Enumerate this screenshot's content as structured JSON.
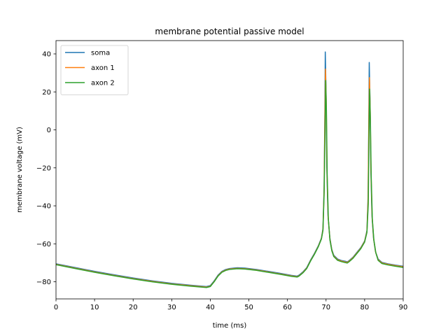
{
  "chart_data": {
    "type": "line",
    "title": "membrane potential passive model",
    "xlabel": "time (ms)",
    "ylabel": "membrane voltage (mV)",
    "xlim": [
      0,
      90
    ],
    "ylim": [
      -89,
      47
    ],
    "xticks": [
      0,
      10,
      20,
      30,
      40,
      50,
      60,
      70,
      80,
      90
    ],
    "yticks": [
      -80,
      -60,
      -40,
      -20,
      0,
      20,
      40
    ],
    "grid": false,
    "legend_position": "top-left",
    "series": [
      {
        "name": "soma",
        "color": "#1f77b4",
        "points": [
          [
            0,
            -70.5
          ],
          [
            5,
            -72.5
          ],
          [
            10,
            -74.5
          ],
          [
            15,
            -76.3
          ],
          [
            20,
            -78
          ],
          [
            25,
            -79.5
          ],
          [
            30,
            -80.8
          ],
          [
            35,
            -81.8
          ],
          [
            39,
            -82.5
          ],
          [
            40,
            -82
          ],
          [
            41,
            -79.5
          ],
          [
            42,
            -76.5
          ],
          [
            43,
            -74.5
          ],
          [
            44,
            -73.5
          ],
          [
            45,
            -73
          ],
          [
            47,
            -72.6
          ],
          [
            49,
            -72.8
          ],
          [
            52,
            -73.5
          ],
          [
            55,
            -74.5
          ],
          [
            58,
            -75.5
          ],
          [
            61,
            -76.6
          ],
          [
            62.5,
            -77
          ],
          [
            63,
            -76.5
          ],
          [
            64,
            -74.8
          ],
          [
            65,
            -72.5
          ],
          [
            66,
            -68.5
          ],
          [
            67,
            -65
          ],
          [
            68,
            -61
          ],
          [
            68.8,
            -57
          ],
          [
            69.2,
            -52
          ],
          [
            69.5,
            -30
          ],
          [
            69.7,
            10
          ],
          [
            69.8,
            41
          ],
          [
            70.0,
            20
          ],
          [
            70.2,
            -20
          ],
          [
            70.5,
            -45
          ],
          [
            71,
            -57
          ],
          [
            71.5,
            -63
          ],
          [
            72,
            -66
          ],
          [
            73,
            -68
          ],
          [
            74,
            -68.8
          ],
          [
            75,
            -69.2
          ],
          [
            75.5,
            -69.5
          ],
          [
            76,
            -68.8
          ],
          [
            77,
            -67
          ],
          [
            78,
            -64.5
          ],
          [
            79,
            -62
          ],
          [
            80,
            -58.5
          ],
          [
            80.6,
            -53
          ],
          [
            80.9,
            -35
          ],
          [
            81.1,
            10
          ],
          [
            81.2,
            35.5
          ],
          [
            81.4,
            15
          ],
          [
            81.6,
            -20
          ],
          [
            81.9,
            -45
          ],
          [
            82.3,
            -57
          ],
          [
            82.8,
            -64
          ],
          [
            83.5,
            -68
          ],
          [
            84.5,
            -69.8
          ],
          [
            86,
            -70.5
          ],
          [
            88,
            -71.2
          ],
          [
            90,
            -71.8
          ]
        ]
      },
      {
        "name": "axon 1",
        "color": "#ff7f0e",
        "points": [
          [
            0,
            -70.8
          ],
          [
            5,
            -72.8
          ],
          [
            10,
            -74.8
          ],
          [
            15,
            -76.6
          ],
          [
            20,
            -78.3
          ],
          [
            25,
            -79.8
          ],
          [
            30,
            -81.1
          ],
          [
            35,
            -82.1
          ],
          [
            39,
            -82.8
          ],
          [
            40,
            -82.3
          ],
          [
            41,
            -79.8
          ],
          [
            42,
            -76.8
          ],
          [
            43,
            -74.8
          ],
          [
            44,
            -73.8
          ],
          [
            45,
            -73.3
          ],
          [
            47,
            -72.9
          ],
          [
            49,
            -73.1
          ],
          [
            52,
            -73.8
          ],
          [
            55,
            -74.8
          ],
          [
            58,
            -75.8
          ],
          [
            61,
            -76.9
          ],
          [
            62.5,
            -77.3
          ],
          [
            63,
            -76.8
          ],
          [
            64,
            -75.1
          ],
          [
            65,
            -72.8
          ],
          [
            66,
            -68.8
          ],
          [
            67,
            -65.3
          ],
          [
            68,
            -61.3
          ],
          [
            68.8,
            -57.3
          ],
          [
            69.2,
            -52.5
          ],
          [
            69.5,
            -32
          ],
          [
            69.7,
            5
          ],
          [
            69.85,
            32
          ],
          [
            70.05,
            15
          ],
          [
            70.25,
            -22
          ],
          [
            70.55,
            -46
          ],
          [
            71,
            -57.5
          ],
          [
            71.5,
            -63.4
          ],
          [
            72,
            -66.4
          ],
          [
            73,
            -68.4
          ],
          [
            74,
            -69.1
          ],
          [
            75,
            -69.6
          ],
          [
            75.5,
            -69.8
          ],
          [
            76,
            -69.1
          ],
          [
            77,
            -67.3
          ],
          [
            78,
            -64.8
          ],
          [
            79,
            -62.3
          ],
          [
            80,
            -58.8
          ],
          [
            80.6,
            -53.5
          ],
          [
            80.9,
            -37
          ],
          [
            81.1,
            5
          ],
          [
            81.25,
            27.5
          ],
          [
            81.45,
            10
          ],
          [
            81.65,
            -22
          ],
          [
            81.95,
            -46
          ],
          [
            82.35,
            -57.5
          ],
          [
            82.85,
            -64.4
          ],
          [
            83.5,
            -68.4
          ],
          [
            84.5,
            -70.1
          ],
          [
            86,
            -70.8
          ],
          [
            88,
            -71.5
          ],
          [
            90,
            -72.1
          ]
        ]
      },
      {
        "name": "axon 2",
        "color": "#2ca02c",
        "points": [
          [
            0,
            -71
          ],
          [
            5,
            -73
          ],
          [
            10,
            -75
          ],
          [
            15,
            -76.8
          ],
          [
            20,
            -78.5
          ],
          [
            25,
            -80
          ],
          [
            30,
            -81.3
          ],
          [
            35,
            -82.3
          ],
          [
            39,
            -83
          ],
          [
            40,
            -82.5
          ],
          [
            41,
            -80
          ],
          [
            42,
            -77
          ],
          [
            43,
            -75
          ],
          [
            44,
            -74
          ],
          [
            45,
            -73.5
          ],
          [
            47,
            -73.1
          ],
          [
            49,
            -73.3
          ],
          [
            52,
            -74
          ],
          [
            55,
            -75
          ],
          [
            58,
            -76
          ],
          [
            61,
            -77.1
          ],
          [
            62.5,
            -77.5
          ],
          [
            63,
            -77
          ],
          [
            64,
            -75.3
          ],
          [
            65,
            -73
          ],
          [
            66,
            -69
          ],
          [
            67,
            -65.5
          ],
          [
            68,
            -61.5
          ],
          [
            68.8,
            -57.5
          ],
          [
            69.2,
            -53
          ],
          [
            69.5,
            -34
          ],
          [
            69.75,
            0
          ],
          [
            69.9,
            26
          ],
          [
            70.1,
            10
          ],
          [
            70.3,
            -24
          ],
          [
            70.6,
            -47
          ],
          [
            71,
            -58
          ],
          [
            71.5,
            -63.7
          ],
          [
            72,
            -66.7
          ],
          [
            73,
            -68.7
          ],
          [
            74,
            -69.4
          ],
          [
            75,
            -69.9
          ],
          [
            75.5,
            -70.1
          ],
          [
            76,
            -69.4
          ],
          [
            77,
            -67.6
          ],
          [
            78,
            -65.1
          ],
          [
            79,
            -62.6
          ],
          [
            80,
            -59.1
          ],
          [
            80.6,
            -54
          ],
          [
            80.95,
            -39
          ],
          [
            81.15,
            0
          ],
          [
            81.3,
            21.5
          ],
          [
            81.5,
            5
          ],
          [
            81.7,
            -24
          ],
          [
            82,
            -47
          ],
          [
            82.4,
            -58
          ],
          [
            82.9,
            -64.7
          ],
          [
            83.5,
            -68.7
          ],
          [
            84.5,
            -70.4
          ],
          [
            86,
            -71.1
          ],
          [
            88,
            -71.8
          ],
          [
            90,
            -72.4
          ]
        ]
      }
    ]
  }
}
